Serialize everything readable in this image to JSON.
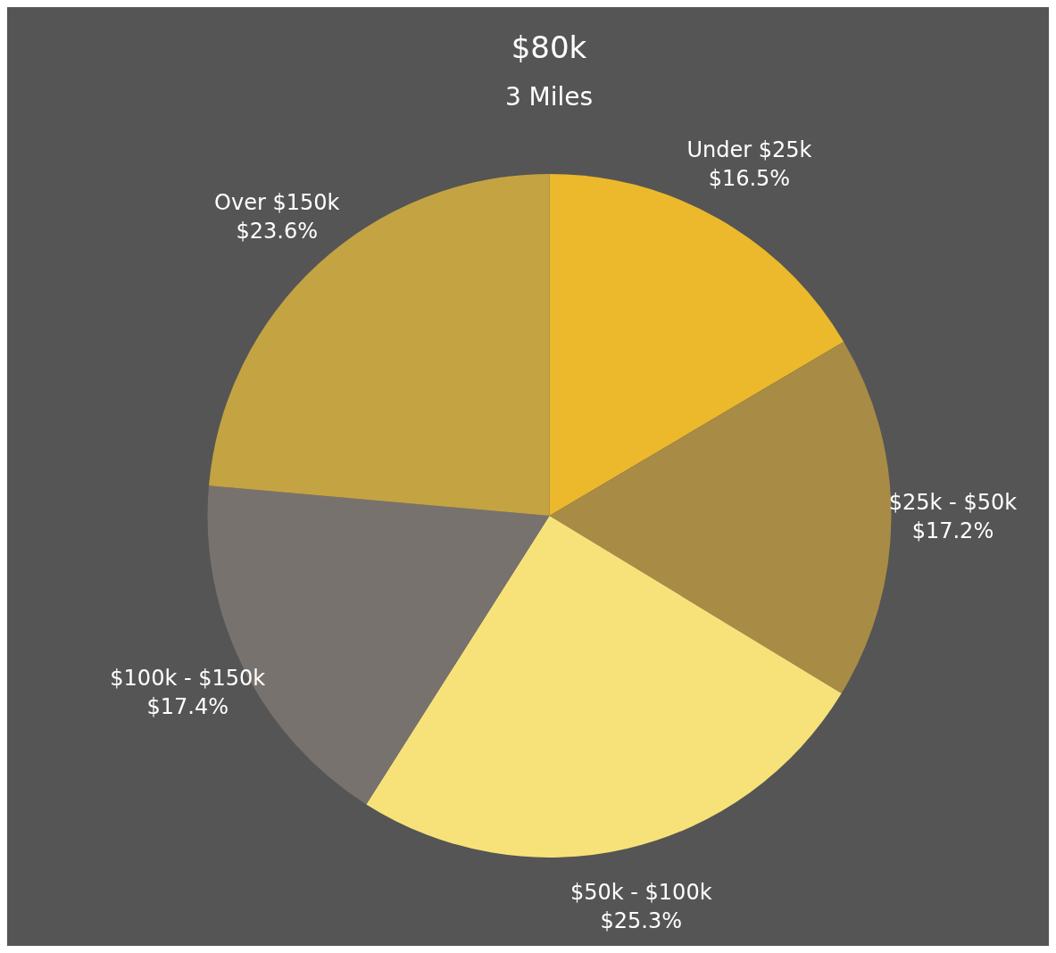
{
  "chart_data": {
    "type": "pie",
    "title": "$80k",
    "subtitle": "3 Miles",
    "categories": [
      "Under $25k",
      "$25k - $50k",
      "$50k - $100k",
      "$100k - $150k",
      "Over $150k"
    ],
    "values": [
      16.5,
      17.2,
      25.3,
      17.4,
      23.6
    ],
    "value_labels": [
      "$16.5%",
      "$17.2%",
      "$25.3%",
      "$17.4%",
      "$23.6%"
    ],
    "colors": [
      "#ecb82c",
      "#a88b45",
      "#f7e27a",
      "#78726f",
      "#c4a343"
    ],
    "legend": false
  }
}
